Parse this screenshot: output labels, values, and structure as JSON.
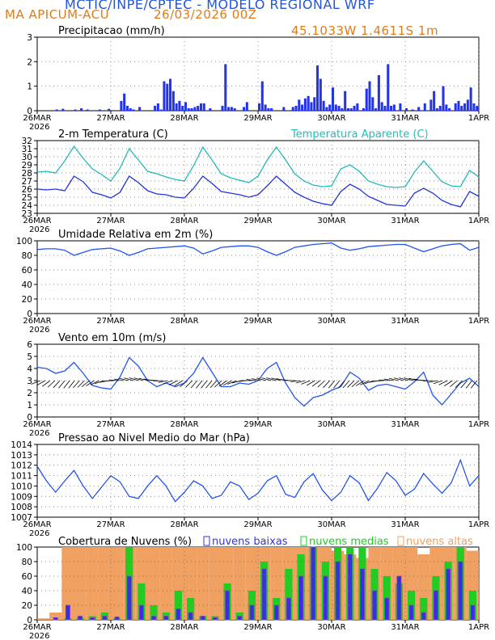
{
  "header": {
    "org_title": "MCTIC/INPE/CPTEC - MODELO REGIONAL WRF",
    "location": "MA APICUM-ACU",
    "run_date": "26/03/2026 00Z",
    "coordinates": "45.1033W 1.4611S 1m"
  },
  "colors": {
    "precip": "#2233ee",
    "temp": "#2233dd",
    "apparent": "#22bbbb",
    "humidity": "#2255ee",
    "wind": "#2255ee",
    "pressure": "#2255ee",
    "cloud_low": "#3333dd",
    "cloud_mid": "#22cc22",
    "cloud_high": "#f0a060"
  },
  "x_axis": {
    "labels": [
      "26MAR",
      "27MAR",
      "28MAR",
      "29MAR",
      "30MAR",
      "31MAR",
      "1APR"
    ],
    "year": "2026",
    "range_hours": [
      0,
      144
    ]
  },
  "chart_data": [
    {
      "type": "bar",
      "title": "Precipitacao (mm/h)",
      "ylim": [
        0,
        3
      ],
      "y_ticks": [
        "0",
        "1",
        "2",
        "3"
      ],
      "x": [
        6,
        8,
        12,
        14,
        16,
        20,
        23,
        27,
        28,
        29,
        30,
        31,
        33,
        38,
        39,
        40,
        41,
        42,
        43,
        44,
        45,
        46,
        47,
        48,
        49,
        50,
        51,
        52,
        53,
        54,
        56,
        60,
        61,
        62,
        63,
        64,
        67,
        68,
        72,
        73,
        74,
        75,
        76,
        80,
        83,
        84,
        85,
        86,
        87,
        88,
        89,
        90,
        91,
        92,
        93,
        94,
        95,
        96,
        97,
        98,
        99,
        100,
        101,
        102,
        103,
        104,
        106,
        107,
        108,
        109,
        110,
        111,
        112,
        113,
        114,
        115,
        116,
        118,
        120,
        122,
        124,
        126,
        128,
        129,
        130,
        131,
        132,
        133,
        134,
        136,
        137,
        138,
        139,
        140,
        141,
        142,
        143
      ],
      "values": [
        0.05,
        0.08,
        0.05,
        0.1,
        0.05,
        0.05,
        0.08,
        0.4,
        0.7,
        0.2,
        0.1,
        0.05,
        0.15,
        0.2,
        0.3,
        0.05,
        1.2,
        1.1,
        1.3,
        0.8,
        0.3,
        0.4,
        0.2,
        0.35,
        0.1,
        0.1,
        0.15,
        0.2,
        0.3,
        0.3,
        0.1,
        0.2,
        1.9,
        0.15,
        0.15,
        0.1,
        0.15,
        0.35,
        0.3,
        1.2,
        0.25,
        0.1,
        0.1,
        0.15,
        0.15,
        0.2,
        0.45,
        0.25,
        0.5,
        0.6,
        0.35,
        0.55,
        1.85,
        1.3,
        0.4,
        0.15,
        0.25,
        0.95,
        0.25,
        0.2,
        0.1,
        0.8,
        0.1,
        0.1,
        0.2,
        0.3,
        0.1,
        0.9,
        1.2,
        0.55,
        0.1,
        1.45,
        0.35,
        0.2,
        1.9,
        0.2,
        0.25,
        0.3,
        0.1,
        0.05,
        0.15,
        0.3,
        0.45,
        0.8,
        0.1,
        0.2,
        1.0,
        0.25,
        0.1,
        0.3,
        0.4,
        0.2,
        0.3,
        0.45,
        0.95,
        0.3,
        0.2
      ]
    },
    {
      "type": "line",
      "title": "2-m Temperatura (C)",
      "legend_label": "Temperatura Aparente (C)",
      "ylim": [
        23,
        32
      ],
      "y_ticks": [
        "23",
        "24",
        "25",
        "26",
        "27",
        "28",
        "29",
        "30",
        "31",
        "32"
      ],
      "series": [
        {
          "name": "2-m Temperatura (C)",
          "x": [
            0,
            3,
            6,
            9,
            12,
            15,
            18,
            21,
            24,
            27,
            30,
            33,
            36,
            39,
            42,
            45,
            48,
            51,
            54,
            57,
            60,
            63,
            66,
            69,
            72,
            75,
            78,
            81,
            84,
            87,
            90,
            93,
            96,
            99,
            102,
            105,
            108,
            111,
            114,
            117,
            120,
            123,
            126,
            129,
            132,
            135,
            138,
            141,
            144
          ],
          "values": [
            26.0,
            25.9,
            26.0,
            25.8,
            27.6,
            26.9,
            25.6,
            25.3,
            24.9,
            25.6,
            27.6,
            26.8,
            25.8,
            25.4,
            25.3,
            25.0,
            24.9,
            26.1,
            27.6,
            26.7,
            25.7,
            25.5,
            25.3,
            25.0,
            25.3,
            26.4,
            27.6,
            26.6,
            25.6,
            25.0,
            24.5,
            24.2,
            24.0,
            25.7,
            26.6,
            26.0,
            25.1,
            24.6,
            24.1,
            24.0,
            23.9,
            25.5,
            26.1,
            25.5,
            24.6,
            24.1,
            23.8,
            25.7,
            25.1
          ]
        },
        {
          "name": "Temperatura Aparente (C)",
          "x": [
            0,
            3,
            6,
            9,
            12,
            15,
            18,
            21,
            24,
            27,
            30,
            33,
            36,
            39,
            42,
            45,
            48,
            51,
            54,
            57,
            60,
            63,
            66,
            69,
            72,
            75,
            78,
            81,
            84,
            87,
            90,
            93,
            96,
            99,
            102,
            105,
            108,
            111,
            114,
            117,
            120,
            123,
            126,
            129,
            132,
            135,
            138,
            141,
            144
          ],
          "values": [
            28.1,
            28.2,
            28.0,
            29.5,
            31.3,
            29.8,
            28.5,
            27.8,
            27.0,
            28.6,
            31.0,
            29.6,
            28.2,
            27.9,
            27.5,
            27.2,
            27.0,
            28.9,
            31.2,
            29.6,
            27.9,
            27.4,
            27.1,
            26.8,
            27.6,
            29.6,
            31.2,
            29.6,
            27.9,
            27.0,
            26.5,
            26.3,
            26.4,
            28.5,
            29.0,
            28.2,
            27.0,
            26.6,
            26.3,
            26.2,
            26.3,
            28.1,
            29.5,
            28.2,
            26.9,
            26.4,
            26.3,
            28.3,
            27.5
          ]
        }
      ]
    },
    {
      "type": "line",
      "title": "Umidade Relativa em 2m (%)",
      "ylim": [
        0,
        100
      ],
      "y_ticks": [
        "0",
        "20",
        "40",
        "60",
        "80",
        "100"
      ],
      "x": [
        0,
        3,
        6,
        9,
        12,
        15,
        18,
        21,
        24,
        27,
        30,
        33,
        36,
        39,
        42,
        45,
        48,
        51,
        54,
        57,
        60,
        63,
        66,
        69,
        72,
        75,
        78,
        81,
        84,
        87,
        90,
        93,
        96,
        99,
        102,
        105,
        108,
        111,
        114,
        117,
        120,
        123,
        126,
        129,
        132,
        135,
        138,
        141,
        144
      ],
      "values": [
        88,
        89,
        89,
        87,
        80,
        84,
        88,
        89,
        90,
        86,
        80,
        84,
        89,
        90,
        91,
        92,
        93,
        90,
        82,
        86,
        91,
        92,
        93,
        93,
        91,
        85,
        80,
        85,
        91,
        93,
        95,
        96,
        97,
        90,
        87,
        89,
        92,
        93,
        94,
        95,
        95,
        90,
        85,
        89,
        93,
        95,
        96,
        87,
        91
      ]
    },
    {
      "type": "line",
      "title": "Vento em 10m (m/s)",
      "ylim": [
        0,
        6
      ],
      "y_ticks": [
        "0",
        "1",
        "2",
        "3",
        "4",
        "5",
        "6"
      ],
      "x": [
        0,
        3,
        6,
        9,
        12,
        15,
        18,
        21,
        24,
        27,
        30,
        33,
        36,
        39,
        42,
        45,
        48,
        51,
        54,
        57,
        60,
        63,
        66,
        69,
        72,
        75,
        78,
        81,
        84,
        87,
        90,
        93,
        96,
        99,
        102,
        105,
        108,
        111,
        114,
        117,
        120,
        123,
        126,
        129,
        132,
        135,
        138,
        141,
        144
      ],
      "values": [
        4.1,
        4.0,
        3.6,
        3.8,
        4.5,
        3.6,
        2.6,
        2.4,
        2.3,
        3.3,
        4.9,
        4.2,
        3.0,
        2.5,
        2.8,
        2.5,
        2.8,
        3.6,
        4.9,
        3.7,
        2.5,
        2.5,
        2.8,
        2.7,
        3.0,
        4.0,
        4.5,
        2.8,
        1.6,
        0.9,
        1.6,
        1.8,
        2.2,
        2.5,
        3.7,
        3.2,
        2.2,
        2.6,
        2.7,
        2.5,
        2.3,
        2.9,
        3.7,
        1.8,
        1.0,
        1.9,
        2.8,
        3.2,
        2.5
      ]
    },
    {
      "type": "line",
      "title": "Pressao ao Nivel Medio do Mar (hPa)",
      "ylim": [
        1007,
        1014
      ],
      "y_ticks": [
        "1007",
        "1008",
        "1009",
        "1010",
        "1011",
        "1012",
        "1013",
        "1014"
      ],
      "x": [
        0,
        3,
        6,
        9,
        12,
        15,
        18,
        21,
        24,
        27,
        30,
        33,
        36,
        39,
        42,
        45,
        48,
        51,
        54,
        57,
        60,
        63,
        66,
        69,
        72,
        75,
        78,
        81,
        84,
        87,
        90,
        93,
        96,
        99,
        102,
        105,
        108,
        111,
        114,
        117,
        120,
        123,
        126,
        129,
        132,
        135,
        138,
        141,
        144
      ],
      "values": [
        1011.9,
        1010.5,
        1009.4,
        1010.5,
        1011.5,
        1010.0,
        1008.8,
        1009.9,
        1011.0,
        1010.4,
        1009.0,
        1008.8,
        1010.0,
        1011.0,
        1010.0,
        1008.5,
        1009.4,
        1010.5,
        1010.0,
        1008.8,
        1009.1,
        1010.4,
        1010.0,
        1008.7,
        1009.3,
        1010.5,
        1011.0,
        1009.2,
        1008.9,
        1010.4,
        1011.2,
        1009.6,
        1008.6,
        1009.4,
        1011.0,
        1010.3,
        1008.6,
        1009.8,
        1011.3,
        1010.5,
        1009.1,
        1009.7,
        1011.2,
        1010.2,
        1009.3,
        1010.3,
        1012.5,
        1010.0,
        1011.0
      ]
    },
    {
      "type": "bar",
      "title": "Cobertura de Nuvens (%)",
      "ylim": [
        0,
        100
      ],
      "y_ticks": [
        "0",
        "20",
        "40",
        "60",
        "80",
        "100"
      ],
      "legend": [
        "nuvens baixas",
        "nuvens medias",
        "nuvens altas"
      ],
      "x": [
        0,
        4,
        8,
        12,
        16,
        20,
        24,
        28,
        32,
        36,
        40,
        44,
        48,
        52,
        56,
        60,
        64,
        68,
        72,
        76,
        80,
        84,
        88,
        92,
        96,
        100,
        104,
        108,
        112,
        116,
        120,
        124,
        128,
        132,
        136,
        140
      ],
      "series": [
        {
          "name": "nuvens altas",
          "values": [
            2,
            10,
            100,
            100,
            100,
            100,
            100,
            100,
            100,
            100,
            100,
            100,
            100,
            100,
            100,
            100,
            100,
            100,
            100,
            100,
            100,
            100,
            100,
            100,
            95,
            90,
            85,
            100,
            100,
            100,
            100,
            90,
            100,
            100,
            100,
            95
          ]
        },
        {
          "name": "nuvens medias",
          "values": [
            0,
            0,
            2,
            3,
            5,
            10,
            2,
            100,
            50,
            20,
            10,
            40,
            30,
            5,
            5,
            50,
            10,
            40,
            80,
            30,
            70,
            90,
            100,
            80,
            100,
            100,
            100,
            70,
            60,
            50,
            40,
            30,
            60,
            80,
            100,
            40
          ]
        },
        {
          "name": "nuvens baixas",
          "values": [
            0,
            3,
            20,
            5,
            3,
            5,
            4,
            60,
            20,
            5,
            5,
            15,
            10,
            5,
            3,
            40,
            5,
            20,
            70,
            20,
            30,
            60,
            100,
            60,
            80,
            90,
            70,
            40,
            30,
            60,
            20,
            10,
            40,
            70,
            80,
            20
          ]
        }
      ]
    }
  ]
}
